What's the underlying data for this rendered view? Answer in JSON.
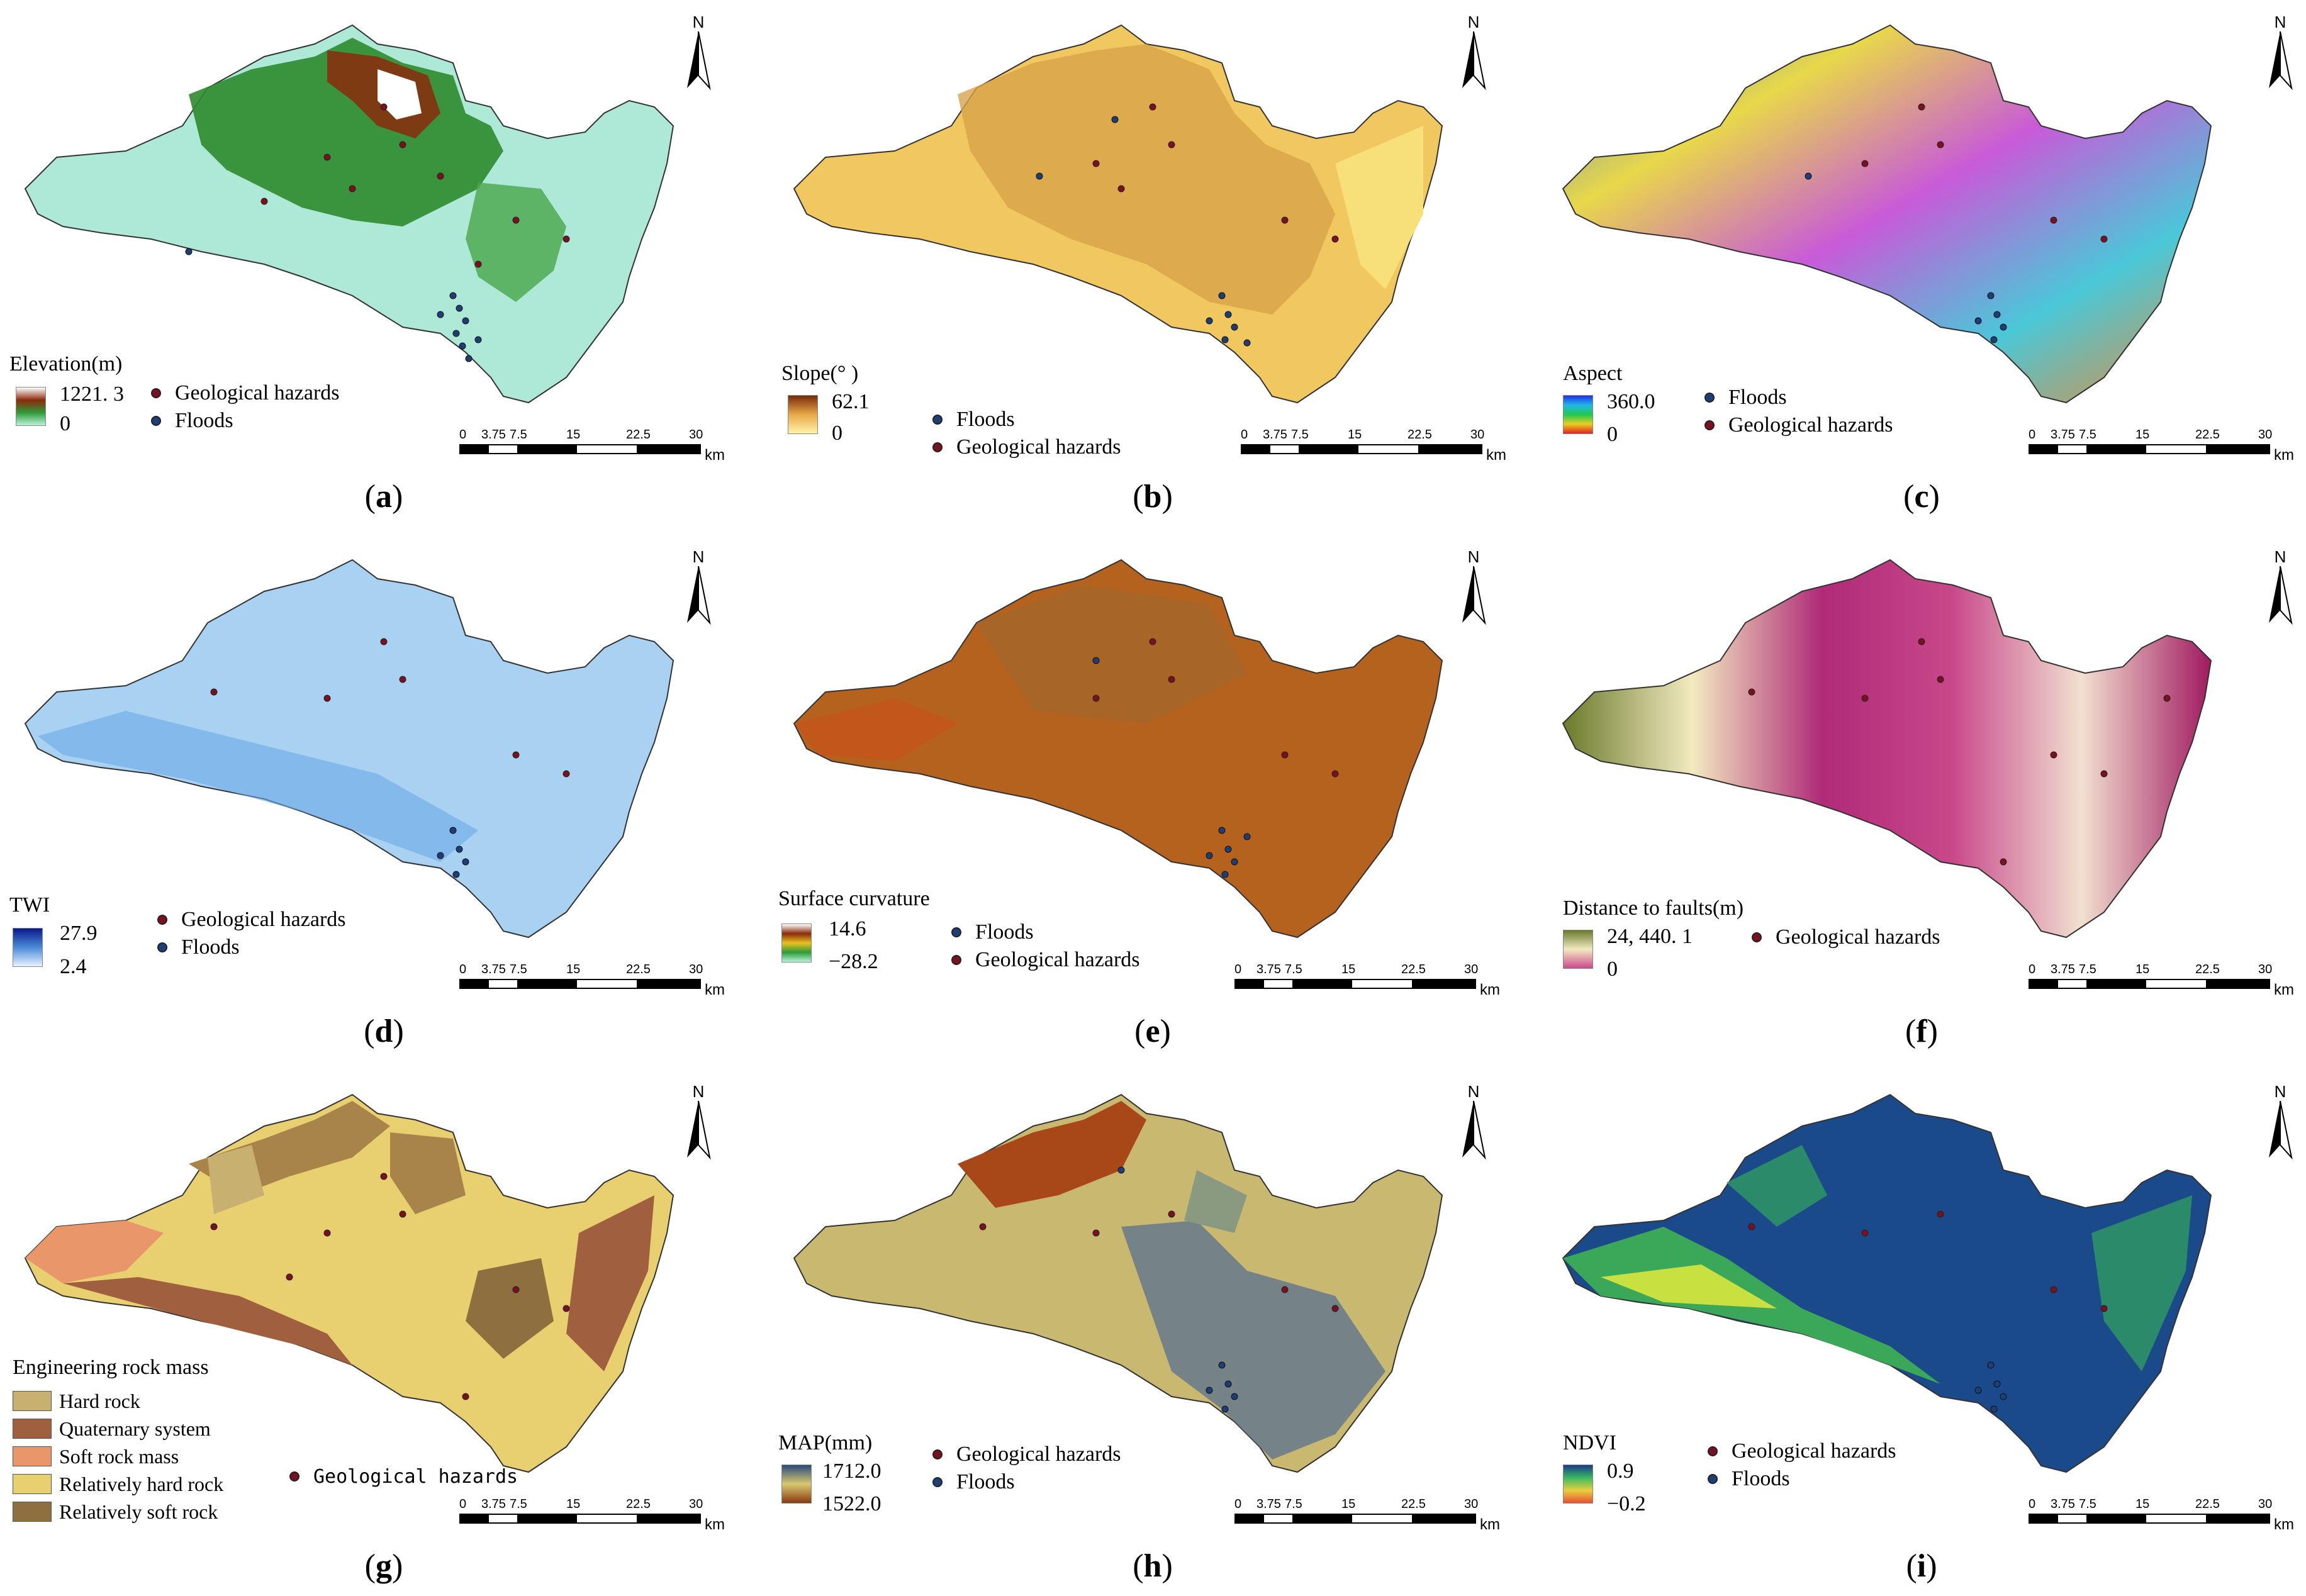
{
  "north_label": "N",
  "scale": {
    "ticks": [
      "0",
      "3.75",
      "7.5",
      "15",
      "22.5",
      "30"
    ],
    "unit": "km"
  },
  "point_labels": {
    "geo": "Geological hazards",
    "flood": "Floods"
  },
  "colors": {
    "geo_dot": "#7a1020",
    "flood_dot": "#1d3f78",
    "outline": "#333333"
  },
  "panels": [
    {
      "id": "a",
      "label": "a",
      "legend_title": "Elevation(m)",
      "max": "1221. 3",
      "min": "0",
      "points": [
        "Geological hazards",
        "Floods"
      ]
    },
    {
      "id": "b",
      "label": "b",
      "legend_title": "Slope(° )",
      "max": "62.1",
      "min": "0",
      "points": [
        "Floods",
        "Geological hazards"
      ]
    },
    {
      "id": "c",
      "label": "c",
      "legend_title": "Aspect",
      "max": "360.0",
      "min": "0",
      "points": [
        "Floods",
        "Geological hazards"
      ]
    },
    {
      "id": "d",
      "label": "d",
      "legend_title": "TWI",
      "max": "27.9",
      "min": "2.4",
      "points": [
        "Geological hazards",
        "Floods"
      ]
    },
    {
      "id": "e",
      "label": "e",
      "legend_title": "Surface curvature",
      "max": "14.6",
      "min": "−28.2",
      "points": [
        "Floods",
        "Geological hazards"
      ]
    },
    {
      "id": "f",
      "label": "f",
      "legend_title": "Distance to faults(m)",
      "max": "24, 440. 1",
      "min": "0",
      "points": [
        "Geological hazards"
      ]
    },
    {
      "id": "g",
      "label": "g",
      "legend_title": "Engineering rock mass",
      "classes": [
        "Hard rock",
        "Quaternary system",
        "Soft rock mass",
        "Relatively hard rock",
        "Relatively soft rock"
      ],
      "points": [
        "Geological hazards"
      ]
    },
    {
      "id": "h",
      "label": "h",
      "legend_title": "MAP(mm)",
      "max": "1712.0",
      "min": "1522.0",
      "points": [
        "Geological hazards",
        "Floods"
      ]
    },
    {
      "id": "i",
      "label": "i",
      "legend_title": "NDVI",
      "max": "0.9",
      "min": "−0.2",
      "points": [
        "Geological hazards",
        "Floods"
      ]
    }
  ]
}
